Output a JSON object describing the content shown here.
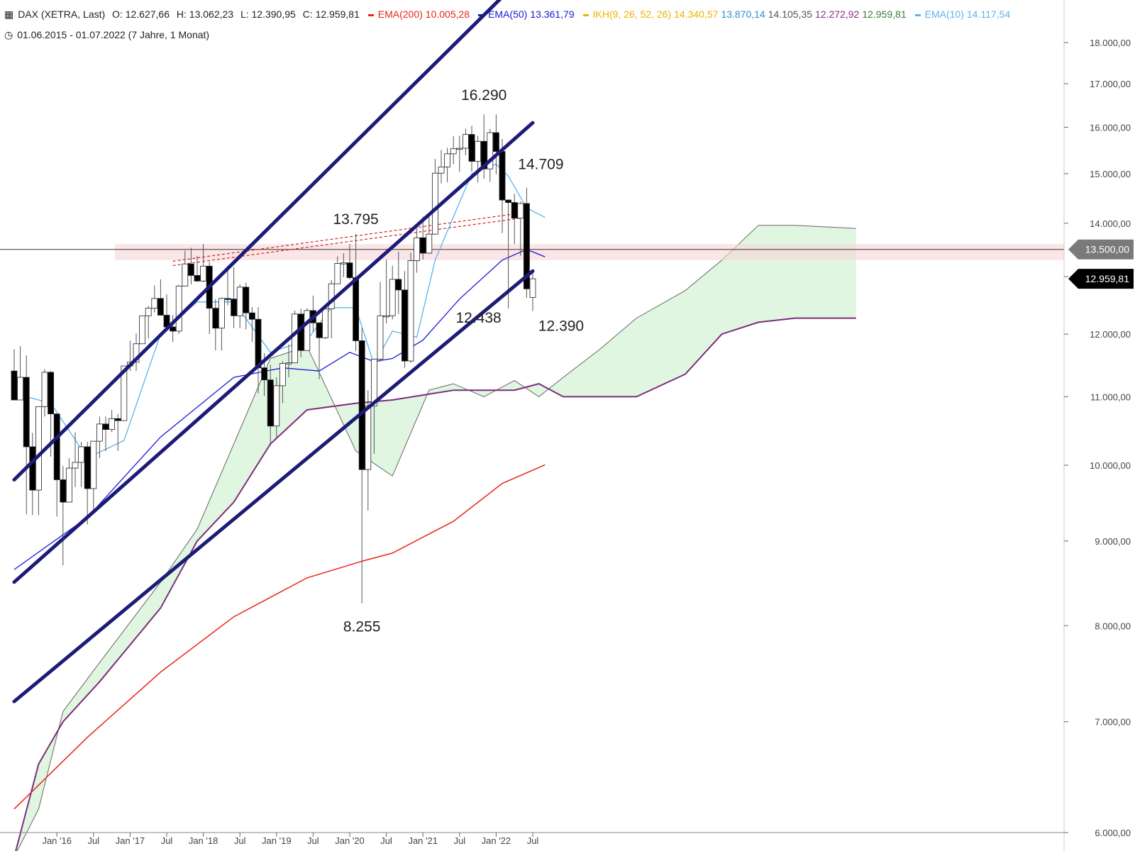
{
  "header": {
    "instrument": "DAX (XETRA, Last)",
    "open": "O: 12.627,66",
    "high": "H: 13.062,23",
    "low": "L: 12.390,95",
    "close": "C: 12.959,81",
    "range": "01.06.2015 - 01.07.2022  (7 Jahre, 1 Monat)"
  },
  "legend": [
    {
      "label": "EMA(200)",
      "values": [
        "10.005,28"
      ],
      "color": "#e8241a"
    },
    {
      "label": "EMA(50)",
      "values": [
        "13.361,79"
      ],
      "color": "#1a1ad6"
    },
    {
      "label": "IKH(9, 26, 52, 26)",
      "values": [
        "14.340,57",
        "13.870,14",
        "14.105,35",
        "12.272,92",
        "12.959,81"
      ],
      "value_colors": [
        "#e8b400",
        "#2a8fd6",
        "#555555",
        "#8a2d8a",
        "#3a7d3a"
      ],
      "color": "#e8b400"
    },
    {
      "label": "EMA(10)",
      "values": [
        "14.117,54"
      ],
      "color": "#5ab4ec"
    }
  ],
  "chart_data": {
    "type": "candlestick",
    "title": "DAX (XETRA, Last)",
    "period": "monthly",
    "y_scale": "log",
    "ylim": [
      6000,
      18000
    ],
    "y_ticks": [
      "6.000,00",
      "7.000,00",
      "8.000,00",
      "9.000,00",
      "10.000,00",
      "11.000,00",
      "12.000,00",
      "13.000,00",
      "14.000,00",
      "15.000,00",
      "16.000,00",
      "17.000,00",
      "18.000,00"
    ],
    "x_ticks": [
      "Jan '16",
      "Jul",
      "Jan '17",
      "Jul",
      "Jan '18",
      "Jul",
      "Jan '19",
      "Jul",
      "Jan '20",
      "Jul",
      "Jan '21",
      "Jul",
      "Jan '22",
      "Jul"
    ],
    "x_range": [
      "2015-06",
      "2022-07"
    ],
    "price_labels": [
      {
        "text": "13.500,00",
        "value": 13500,
        "style": "grey"
      },
      {
        "text": "12.959,81",
        "value": 12959.81,
        "style": "black"
      }
    ],
    "annotations": [
      {
        "text": "16.290",
        "date": "2021-11",
        "value": 16290
      },
      {
        "text": "13.795",
        "date": "2020-02",
        "value": 13795
      },
      {
        "text": "8.255",
        "date": "2020-03",
        "value": 8255
      },
      {
        "text": "14.709",
        "date": "2022-06",
        "value": 14709
      },
      {
        "text": "12.438",
        "date": "2022-03",
        "value": 12438
      },
      {
        "text": "12.390",
        "date": "2022-07",
        "value": 12390
      }
    ],
    "candles": [
      {
        "d": "2015-06",
        "o": 11400,
        "h": 11750,
        "l": 10960,
        "c": 10950
      },
      {
        "d": "2015-07",
        "o": 10950,
        "h": 11800,
        "l": 10950,
        "c": 11300
      },
      {
        "d": "2015-08",
        "o": 11300,
        "h": 11650,
        "l": 9340,
        "c": 10260
      },
      {
        "d": "2015-09",
        "o": 10260,
        "h": 10460,
        "l": 9330,
        "c": 9660
      },
      {
        "d": "2015-10",
        "o": 9660,
        "h": 10850,
        "l": 9330,
        "c": 10850
      },
      {
        "d": "2015-11",
        "o": 10850,
        "h": 11430,
        "l": 10700,
        "c": 11380
      },
      {
        "d": "2015-12",
        "o": 11380,
        "h": 11400,
        "l": 10120,
        "c": 10740
      },
      {
        "d": "2016-01",
        "o": 10740,
        "h": 10740,
        "l": 9310,
        "c": 9800
      },
      {
        "d": "2016-02",
        "o": 9800,
        "h": 9990,
        "l": 8700,
        "c": 9500
      },
      {
        "d": "2016-03",
        "o": 9500,
        "h": 10100,
        "l": 9500,
        "c": 9960
      },
      {
        "d": "2016-04",
        "o": 9960,
        "h": 10470,
        "l": 9700,
        "c": 10040
      },
      {
        "d": "2016-05",
        "o": 10040,
        "h": 10330,
        "l": 9700,
        "c": 10260
      },
      {
        "d": "2016-06",
        "o": 10260,
        "h": 10330,
        "l": 9210,
        "c": 9680
      },
      {
        "d": "2016-07",
        "o": 9680,
        "h": 10340,
        "l": 9380,
        "c": 10340
      },
      {
        "d": "2016-08",
        "o": 10340,
        "h": 10700,
        "l": 10100,
        "c": 10590
      },
      {
        "d": "2016-09",
        "o": 10590,
        "h": 10700,
        "l": 10200,
        "c": 10510
      },
      {
        "d": "2016-10",
        "o": 10510,
        "h": 10800,
        "l": 10470,
        "c": 10670
      },
      {
        "d": "2016-11",
        "o": 10670,
        "h": 10740,
        "l": 10200,
        "c": 10640
      },
      {
        "d": "2016-12",
        "o": 10640,
        "h": 11480,
        "l": 10640,
        "c": 11480
      },
      {
        "d": "2017-01",
        "o": 11480,
        "h": 11890,
        "l": 11400,
        "c": 11540
      },
      {
        "d": "2017-02",
        "o": 11540,
        "h": 12010,
        "l": 11400,
        "c": 11840
      },
      {
        "d": "2017-03",
        "o": 11840,
        "h": 12310,
        "l": 11840,
        "c": 12310
      },
      {
        "d": "2017-04",
        "o": 12310,
        "h": 12480,
        "l": 11930,
        "c": 12440
      },
      {
        "d": "2017-05",
        "o": 12440,
        "h": 12840,
        "l": 12370,
        "c": 12610
      },
      {
        "d": "2017-06",
        "o": 12610,
        "h": 12950,
        "l": 12320,
        "c": 12320
      },
      {
        "d": "2017-07",
        "o": 12320,
        "h": 12680,
        "l": 12060,
        "c": 12120
      },
      {
        "d": "2017-08",
        "o": 12120,
        "h": 12320,
        "l": 11870,
        "c": 12050
      },
      {
        "d": "2017-09",
        "o": 12050,
        "h": 12850,
        "l": 12000,
        "c": 12830
      },
      {
        "d": "2017-10",
        "o": 12830,
        "h": 13480,
        "l": 12830,
        "c": 13230
      },
      {
        "d": "2017-11",
        "o": 13230,
        "h": 13530,
        "l": 12860,
        "c": 13020
      },
      {
        "d": "2017-12",
        "o": 13020,
        "h": 13380,
        "l": 12900,
        "c": 12920
      },
      {
        "d": "2018-01",
        "o": 12920,
        "h": 13600,
        "l": 12900,
        "c": 13190
      },
      {
        "d": "2018-02",
        "o": 13190,
        "h": 13270,
        "l": 12000,
        "c": 12440
      },
      {
        "d": "2018-03",
        "o": 12440,
        "h": 12600,
        "l": 11730,
        "c": 12100
      },
      {
        "d": "2018-04",
        "o": 12100,
        "h": 12630,
        "l": 11730,
        "c": 12610
      },
      {
        "d": "2018-05",
        "o": 12610,
        "h": 13200,
        "l": 12490,
        "c": 12600
      },
      {
        "d": "2018-06",
        "o": 12600,
        "h": 13170,
        "l": 12100,
        "c": 12310
      },
      {
        "d": "2018-07",
        "o": 12310,
        "h": 12860,
        "l": 12100,
        "c": 12810
      },
      {
        "d": "2018-08",
        "o": 12810,
        "h": 12890,
        "l": 12080,
        "c": 12360
      },
      {
        "d": "2018-09",
        "o": 12360,
        "h": 12460,
        "l": 11870,
        "c": 12250
      },
      {
        "d": "2018-10",
        "o": 12250,
        "h": 12460,
        "l": 11050,
        "c": 11450
      },
      {
        "d": "2018-11",
        "o": 11450,
        "h": 11690,
        "l": 11010,
        "c": 11260
      },
      {
        "d": "2018-12",
        "o": 11260,
        "h": 11500,
        "l": 10280,
        "c": 10560
      },
      {
        "d": "2019-01",
        "o": 10560,
        "h": 11300,
        "l": 10380,
        "c": 11170
      },
      {
        "d": "2019-02",
        "o": 11170,
        "h": 11560,
        "l": 10900,
        "c": 11520
      },
      {
        "d": "2019-03",
        "o": 11520,
        "h": 11830,
        "l": 11300,
        "c": 11530
      },
      {
        "d": "2019-04",
        "o": 11530,
        "h": 12400,
        "l": 11530,
        "c": 12340
      },
      {
        "d": "2019-05",
        "o": 12340,
        "h": 12430,
        "l": 11620,
        "c": 11730
      },
      {
        "d": "2019-06",
        "o": 11730,
        "h": 12440,
        "l": 11730,
        "c": 12400
      },
      {
        "d": "2019-07",
        "o": 12400,
        "h": 12660,
        "l": 12040,
        "c": 12190
      },
      {
        "d": "2019-08",
        "o": 12190,
        "h": 12190,
        "l": 11270,
        "c": 11940
      },
      {
        "d": "2019-09",
        "o": 11940,
        "h": 12500,
        "l": 11920,
        "c": 12430
      },
      {
        "d": "2019-10",
        "o": 12430,
        "h": 12940,
        "l": 11930,
        "c": 12870
      },
      {
        "d": "2019-11",
        "o": 12870,
        "h": 13370,
        "l": 12880,
        "c": 13240
      },
      {
        "d": "2019-12",
        "o": 13240,
        "h": 13430,
        "l": 12990,
        "c": 13250
      },
      {
        "d": "2020-01",
        "o": 13250,
        "h": 13600,
        "l": 12950,
        "c": 12980
      },
      {
        "d": "2020-02",
        "o": 12980,
        "h": 13795,
        "l": 11720,
        "c": 11890
      },
      {
        "d": "2020-03",
        "o": 11890,
        "h": 12100,
        "l": 8255,
        "c": 9940
      },
      {
        "d": "2020-04",
        "o": 9940,
        "h": 11100,
        "l": 9390,
        "c": 10860
      },
      {
        "d": "2020-05",
        "o": 10860,
        "h": 11600,
        "l": 10160,
        "c": 11590
      },
      {
        "d": "2020-06",
        "o": 11590,
        "h": 12900,
        "l": 11550,
        "c": 12310
      },
      {
        "d": "2020-07",
        "o": 12310,
        "h": 13310,
        "l": 12180,
        "c": 12310
      },
      {
        "d": "2020-08",
        "o": 12310,
        "h": 13200,
        "l": 12250,
        "c": 12950
      },
      {
        "d": "2020-09",
        "o": 12950,
        "h": 13460,
        "l": 12340,
        "c": 12760
      },
      {
        "d": "2020-10",
        "o": 12760,
        "h": 13100,
        "l": 11450,
        "c": 11560
      },
      {
        "d": "2020-11",
        "o": 11560,
        "h": 13440,
        "l": 11530,
        "c": 13290
      },
      {
        "d": "2020-12",
        "o": 13290,
        "h": 13900,
        "l": 13070,
        "c": 13720
      },
      {
        "d": "2021-01",
        "o": 13720,
        "h": 14130,
        "l": 13310,
        "c": 13430
      },
      {
        "d": "2021-02",
        "o": 13430,
        "h": 14170,
        "l": 13420,
        "c": 13790
      },
      {
        "d": "2021-03",
        "o": 13790,
        "h": 15310,
        "l": 13780,
        "c": 15010
      },
      {
        "d": "2021-04",
        "o": 15010,
        "h": 15500,
        "l": 14800,
        "c": 15140
      },
      {
        "d": "2021-05",
        "o": 15140,
        "h": 15550,
        "l": 14820,
        "c": 15420
      },
      {
        "d": "2021-06",
        "o": 15420,
        "h": 15800,
        "l": 15200,
        "c": 15530
      },
      {
        "d": "2021-07",
        "o": 15530,
        "h": 15810,
        "l": 15040,
        "c": 15540
      },
      {
        "d": "2021-08",
        "o": 15540,
        "h": 15970,
        "l": 15390,
        "c": 15840
      },
      {
        "d": "2021-09",
        "o": 15840,
        "h": 16030,
        "l": 15040,
        "c": 15260
      },
      {
        "d": "2021-10",
        "o": 15260,
        "h": 15810,
        "l": 14820,
        "c": 15690
      },
      {
        "d": "2021-11",
        "o": 15690,
        "h": 16290,
        "l": 14890,
        "c": 15100
      },
      {
        "d": "2021-12",
        "o": 15100,
        "h": 15960,
        "l": 14830,
        "c": 15880
      },
      {
        "d": "2022-01",
        "o": 15880,
        "h": 16290,
        "l": 14990,
        "c": 15470
      },
      {
        "d": "2022-02",
        "o": 15470,
        "h": 15740,
        "l": 13810,
        "c": 14460
      },
      {
        "d": "2022-03",
        "o": 14460,
        "h": 14470,
        "l": 12438,
        "c": 14410
      },
      {
        "d": "2022-04",
        "o": 14410,
        "h": 14590,
        "l": 13600,
        "c": 14100
      },
      {
        "d": "2022-05",
        "o": 14100,
        "h": 14430,
        "l": 13380,
        "c": 14390
      },
      {
        "d": "2022-06",
        "o": 14390,
        "h": 14709,
        "l": 12620,
        "c": 12780
      },
      {
        "d": "2022-07",
        "o": 12627.66,
        "h": 13062.23,
        "l": 12390.95,
        "c": 12959.81
      }
    ],
    "ema10": [
      [
        0,
        11050
      ],
      [
        6,
        10900
      ],
      [
        12,
        10100
      ],
      [
        18,
        10350
      ],
      [
        24,
        12000
      ],
      [
        30,
        12550
      ],
      [
        36,
        12550
      ],
      [
        42,
        11700
      ],
      [
        48,
        11900
      ],
      [
        52,
        12450
      ],
      [
        56,
        12450
      ],
      [
        59,
        11500
      ],
      [
        62,
        12050
      ],
      [
        66,
        11950
      ],
      [
        69,
        13300
      ],
      [
        75,
        15000
      ],
      [
        79,
        15200
      ],
      [
        81,
        14950
      ],
      [
        84,
        14300
      ],
      [
        87,
        14117.54
      ]
    ],
    "ema50": [
      [
        0,
        8650
      ],
      [
        12,
        9300
      ],
      [
        24,
        10400
      ],
      [
        36,
        11300
      ],
      [
        44,
        11450
      ],
      [
        50,
        11400
      ],
      [
        55,
        11700
      ],
      [
        59,
        11550
      ],
      [
        62,
        11600
      ],
      [
        67,
        11900
      ],
      [
        73,
        12600
      ],
      [
        80,
        13300
      ],
      [
        84,
        13500
      ],
      [
        87,
        13361.79
      ]
    ],
    "ema200": [
      [
        0,
        6200
      ],
      [
        12,
        6850
      ],
      [
        24,
        7500
      ],
      [
        36,
        8100
      ],
      [
        48,
        8550
      ],
      [
        57,
        8750
      ],
      [
        62,
        8850
      ],
      [
        72,
        9250
      ],
      [
        80,
        9750
      ],
      [
        87,
        10005.28
      ]
    ],
    "ikh_span_a": [
      [
        0,
        5800
      ],
      [
        4,
        6200
      ],
      [
        8,
        7100
      ],
      [
        14,
        7600
      ],
      [
        24,
        8500
      ],
      [
        30,
        9150
      ],
      [
        36,
        10300
      ],
      [
        42,
        11600
      ],
      [
        48,
        11800
      ],
      [
        56,
        10200
      ],
      [
        62,
        9850
      ],
      [
        68,
        11100
      ],
      [
        72,
        11200
      ],
      [
        77,
        11000
      ],
      [
        82,
        11250
      ],
      [
        86,
        11000
      ],
      [
        90,
        11300
      ],
      [
        96,
        11750
      ],
      [
        102,
        12270
      ],
      [
        110,
        12750
      ],
      [
        116,
        13300
      ],
      [
        122,
        13960
      ],
      [
        128,
        13960
      ],
      [
        138,
        13900
      ]
    ],
    "ikh_span_b": [
      [
        0,
        5800
      ],
      [
        4,
        6600
      ],
      [
        8,
        7000
      ],
      [
        14,
        7400
      ],
      [
        24,
        8200
      ],
      [
        30,
        9000
      ],
      [
        36,
        9500
      ],
      [
        42,
        10300
      ],
      [
        48,
        10800
      ],
      [
        56,
        10900
      ],
      [
        62,
        10950
      ],
      [
        72,
        11100
      ],
      [
        82,
        11100
      ],
      [
        86,
        11200
      ],
      [
        90,
        11000
      ],
      [
        96,
        11000
      ],
      [
        102,
        11000
      ],
      [
        110,
        11350
      ],
      [
        116,
        12000
      ],
      [
        122,
        12200
      ],
      [
        128,
        12270
      ],
      [
        138,
        12270
      ]
    ],
    "trend_lines": [
      {
        "name": "upper channel",
        "points": [
          [
            "2015-06",
            9800
          ],
          [
            "2022-07",
            20000
          ]
        ]
      },
      {
        "name": "middle channel",
        "points": [
          [
            "2015-06",
            8500
          ],
          [
            "2022-07",
            16100
          ]
        ]
      },
      {
        "name": "lower channel",
        "points": [
          [
            "2015-06",
            7200
          ],
          [
            "2022-07",
            13100
          ]
        ]
      }
    ],
    "horizontal_zone": [
      13300,
      13600
    ]
  }
}
